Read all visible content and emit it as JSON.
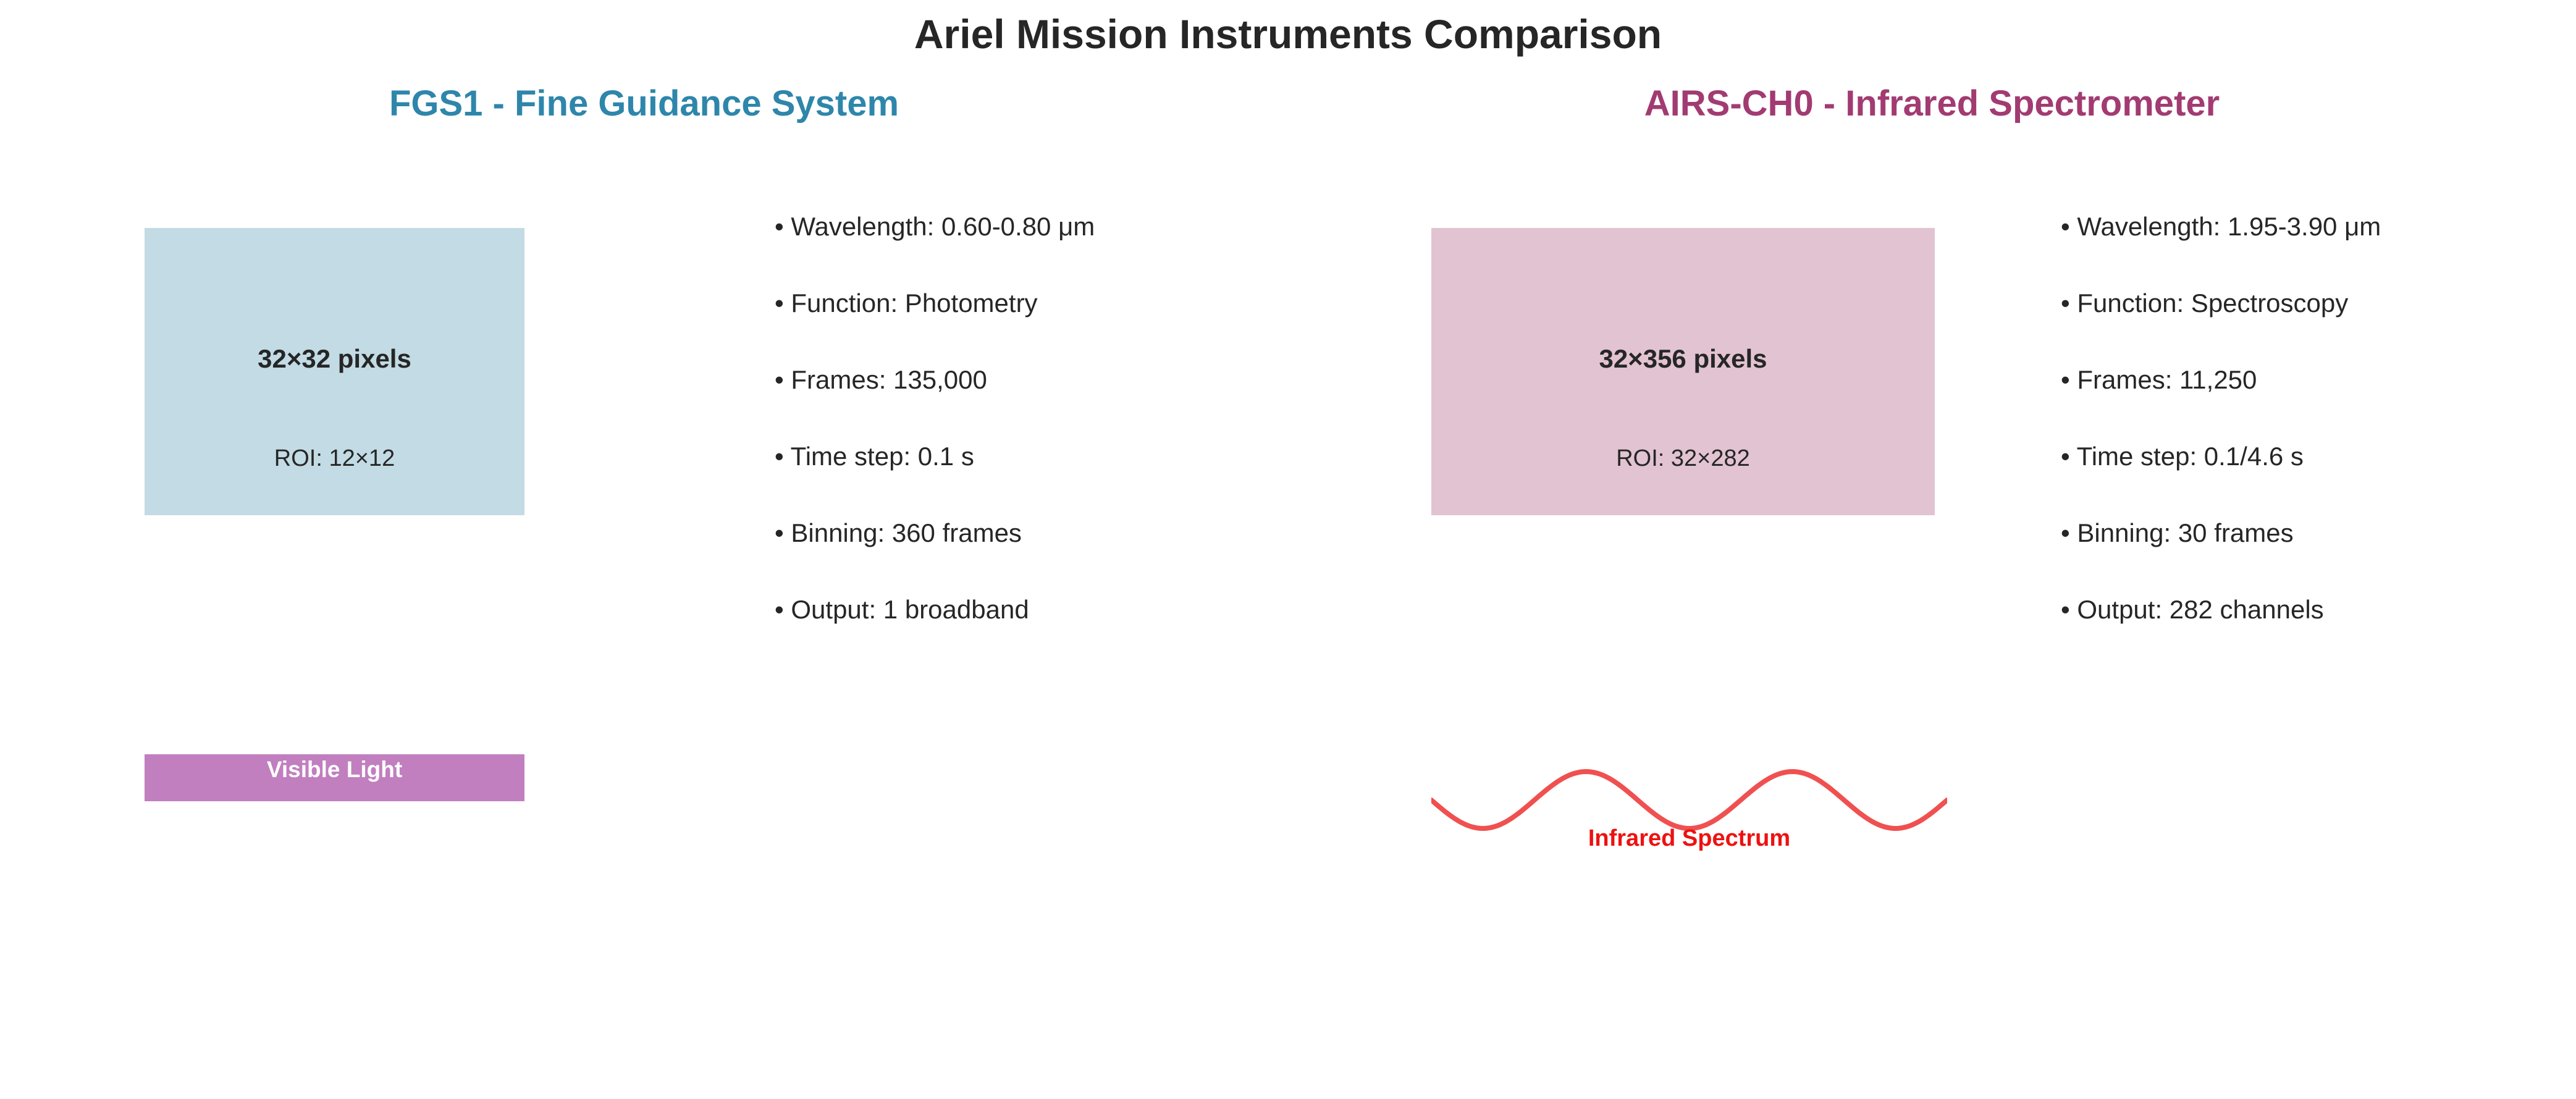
{
  "title": "Ariel Mission Instruments Comparison",
  "colors": {
    "fgs1_title": "#2e86ab",
    "airs_title": "#a23b72",
    "fgs1_detector": "#c2dbe4",
    "airs_detector": "#e2c3d2",
    "visible_band": "#c17fbf",
    "infrared_wave": "#f05050",
    "infrared_label": "#ee1111"
  },
  "fgs1": {
    "title": "FGS1 - Fine Guidance System",
    "detector": {
      "dims": "32×32 pixels",
      "roi": "ROI: 12×12"
    },
    "specs": [
      "• Wavelength: 0.60-0.80 μm",
      "• Function: Photometry",
      "• Frames: 135,000",
      "• Time step: 0.1 s",
      "• Binning: 360 frames",
      "• Output: 1 broadband"
    ],
    "band_label": "Visible Light"
  },
  "airs": {
    "title": "AIRS-CH0 - Infrared Spectrometer",
    "detector": {
      "dims": "32×356 pixels",
      "roi": "ROI: 32×282"
    },
    "specs": [
      "• Wavelength: 1.95-3.90 μm",
      "• Function: Spectroscopy",
      "• Frames: 11,250",
      "• Time step: 0.1/4.6 s",
      "• Binning: 30 frames",
      "• Output: 282 channels"
    ],
    "band_label": "Infrared Spectrum"
  }
}
